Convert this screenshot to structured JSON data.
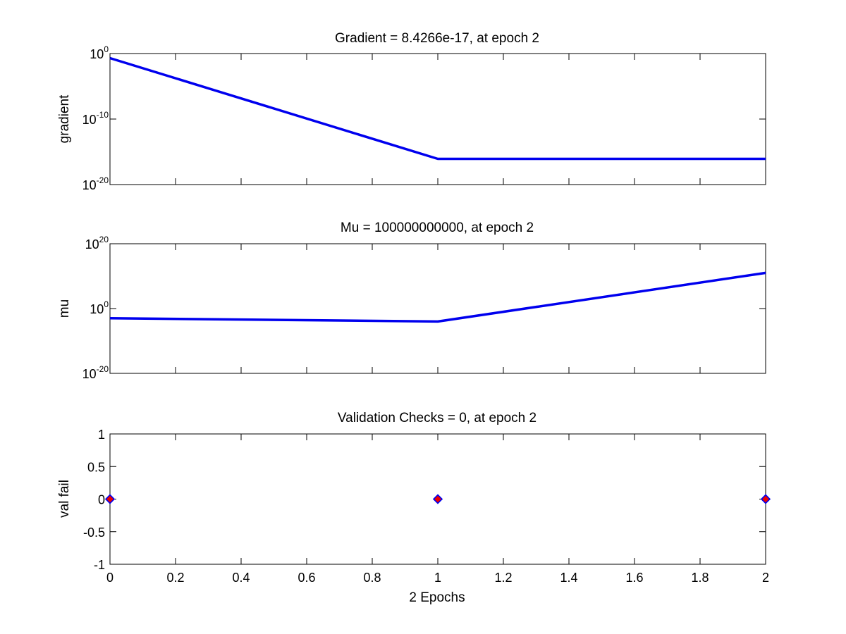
{
  "chart_data": [
    {
      "type": "line",
      "title": "Gradient = 8.4266e-17, at epoch 2",
      "ylabel": "gradient",
      "xlabel": "",
      "yscale": "log",
      "ylim": [
        -20,
        0
      ],
      "yticks": [
        {
          "base": "10",
          "exp": "0",
          "value": 0
        },
        {
          "base": "10",
          "exp": "-10",
          "value": -10
        },
        {
          "base": "10",
          "exp": "-20",
          "value": -20
        }
      ],
      "xlim": [
        0,
        2
      ],
      "show_x_ticklabels": false,
      "series": [
        {
          "x": [
            0,
            1,
            2
          ],
          "y": [
            -0.7,
            -16.07,
            -16.07
          ]
        }
      ]
    },
    {
      "type": "line",
      "title": "Mu = 100000000000, at epoch 2",
      "ylabel": "mu",
      "xlabel": "",
      "yscale": "log",
      "ylim": [
        -20,
        20
      ],
      "yticks": [
        {
          "base": "10",
          "exp": "20",
          "value": 20
        },
        {
          "base": "10",
          "exp": "0",
          "value": 0
        },
        {
          "base": "10",
          "exp": "-20",
          "value": -20
        }
      ],
      "xlim": [
        0,
        2
      ],
      "show_x_ticklabels": false,
      "series": [
        {
          "x": [
            0,
            1,
            2
          ],
          "y": [
            -3,
            -4,
            11
          ]
        }
      ]
    },
    {
      "type": "scatter",
      "title": "Validation Checks = 0, at epoch 2",
      "ylabel": "val fail",
      "xlabel": "2 Epochs",
      "yscale": "linear",
      "ylim": [
        -1,
        1
      ],
      "yticks": [
        {
          "label": "1",
          "value": 1
        },
        {
          "label": "0.5",
          "value": 0.5
        },
        {
          "label": "0",
          "value": 0
        },
        {
          "label": "-0.5",
          "value": -0.5
        },
        {
          "label": "-1",
          "value": -1
        }
      ],
      "xlim": [
        0,
        2
      ],
      "show_x_ticklabels": true,
      "xticks": [
        {
          "label": "0",
          "value": 0
        },
        {
          "label": "0.2",
          "value": 0.2
        },
        {
          "label": "0.4",
          "value": 0.4
        },
        {
          "label": "0.6",
          "value": 0.6
        },
        {
          "label": "0.8",
          "value": 0.8
        },
        {
          "label": "1",
          "value": 1
        },
        {
          "label": "1.2",
          "value": 1.2
        },
        {
          "label": "1.4",
          "value": 1.4
        },
        {
          "label": "1.6",
          "value": 1.6
        },
        {
          "label": "1.8",
          "value": 1.8
        },
        {
          "label": "2",
          "value": 2
        }
      ],
      "series": [
        {
          "x": [
            0,
            1,
            2
          ],
          "y": [
            0,
            0,
            0
          ]
        }
      ]
    }
  ]
}
